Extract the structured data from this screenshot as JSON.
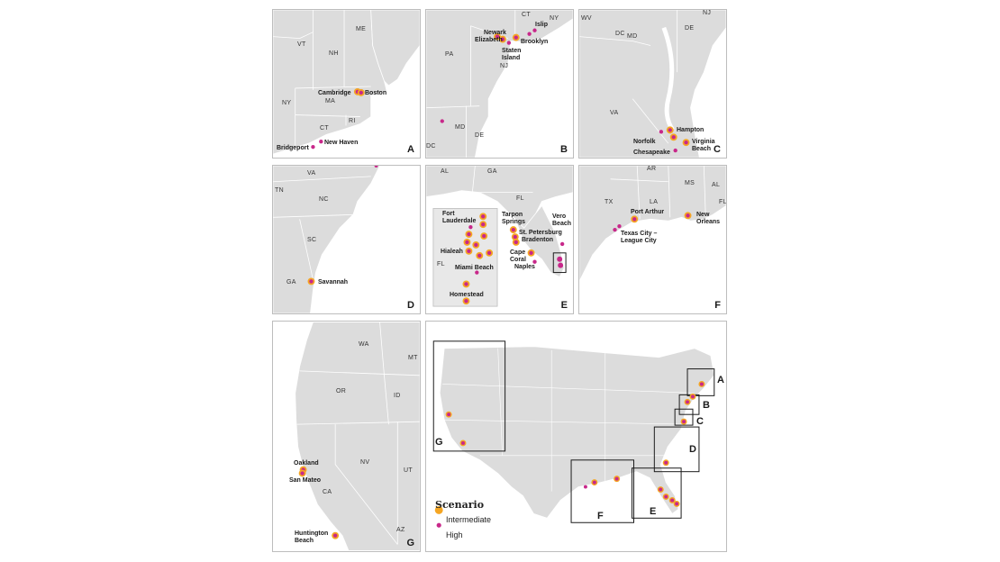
{
  "colors": {
    "intermediate": "#f5a623",
    "high": "#c8288a",
    "land": "#dcdcdc"
  },
  "panels": {
    "A": {
      "letter": "A",
      "states": [
        "VT",
        "ME",
        "NH",
        "MA",
        "NY",
        "CT",
        "RI"
      ],
      "cities": [
        "Cambridge",
        "Boston",
        "Bridgeport",
        "New Haven"
      ]
    },
    "B": {
      "letter": "B",
      "states": [
        "CT",
        "NY",
        "PA",
        "NJ",
        "MD",
        "DE",
        "DC"
      ],
      "cities": [
        "Newark",
        "Elizabeth",
        "Staten\nIsland",
        "Brooklyn",
        "Islip"
      ]
    },
    "C": {
      "letter": "C",
      "states": [
        "WV",
        "NJ",
        "DC",
        "MD",
        "DE",
        "VA"
      ],
      "cities": [
        "Hampton",
        "Norfolk",
        "Virginia\nBeach",
        "Chesapeake"
      ]
    },
    "D": {
      "letter": "D",
      "states": [
        "VA",
        "TN",
        "NC",
        "SC",
        "GA"
      ],
      "cities": [
        "Savannah"
      ]
    },
    "E": {
      "letter": "E",
      "states": [
        "AL",
        "GA",
        "FL",
        "FL"
      ],
      "cities": [
        "Fort\nLauderdale",
        "Hialeah",
        "Miami Beach",
        "Homestead",
        "Tarpon\nSprings",
        "St. Petersburg",
        "Bradenton",
        "Cape\nCoral",
        "Naples",
        "Vero\nBeach"
      ]
    },
    "F": {
      "letter": "F",
      "states": [
        "AR",
        "MS",
        "AL",
        "TX",
        "LA",
        "FL"
      ],
      "cities": [
        "Port Arthur",
        "New\nOrleans",
        "Texas City –\nLeague City"
      ]
    },
    "G": {
      "letter": "G",
      "states": [
        "WA",
        "MT",
        "OR",
        "ID",
        "NV",
        "UT",
        "CA",
        "AZ"
      ],
      "cities": [
        "Oakland",
        "San Mateo",
        "Huntington\nBeach"
      ]
    }
  },
  "overview": {
    "inset_labels": [
      "A",
      "B",
      "C",
      "D",
      "E",
      "F",
      "G"
    ]
  },
  "legend": {
    "title": "Scenario",
    "items": [
      {
        "label": "Intermediate",
        "color": "#f5a623"
      },
      {
        "label": "High",
        "color": "#c8288a"
      }
    ]
  }
}
